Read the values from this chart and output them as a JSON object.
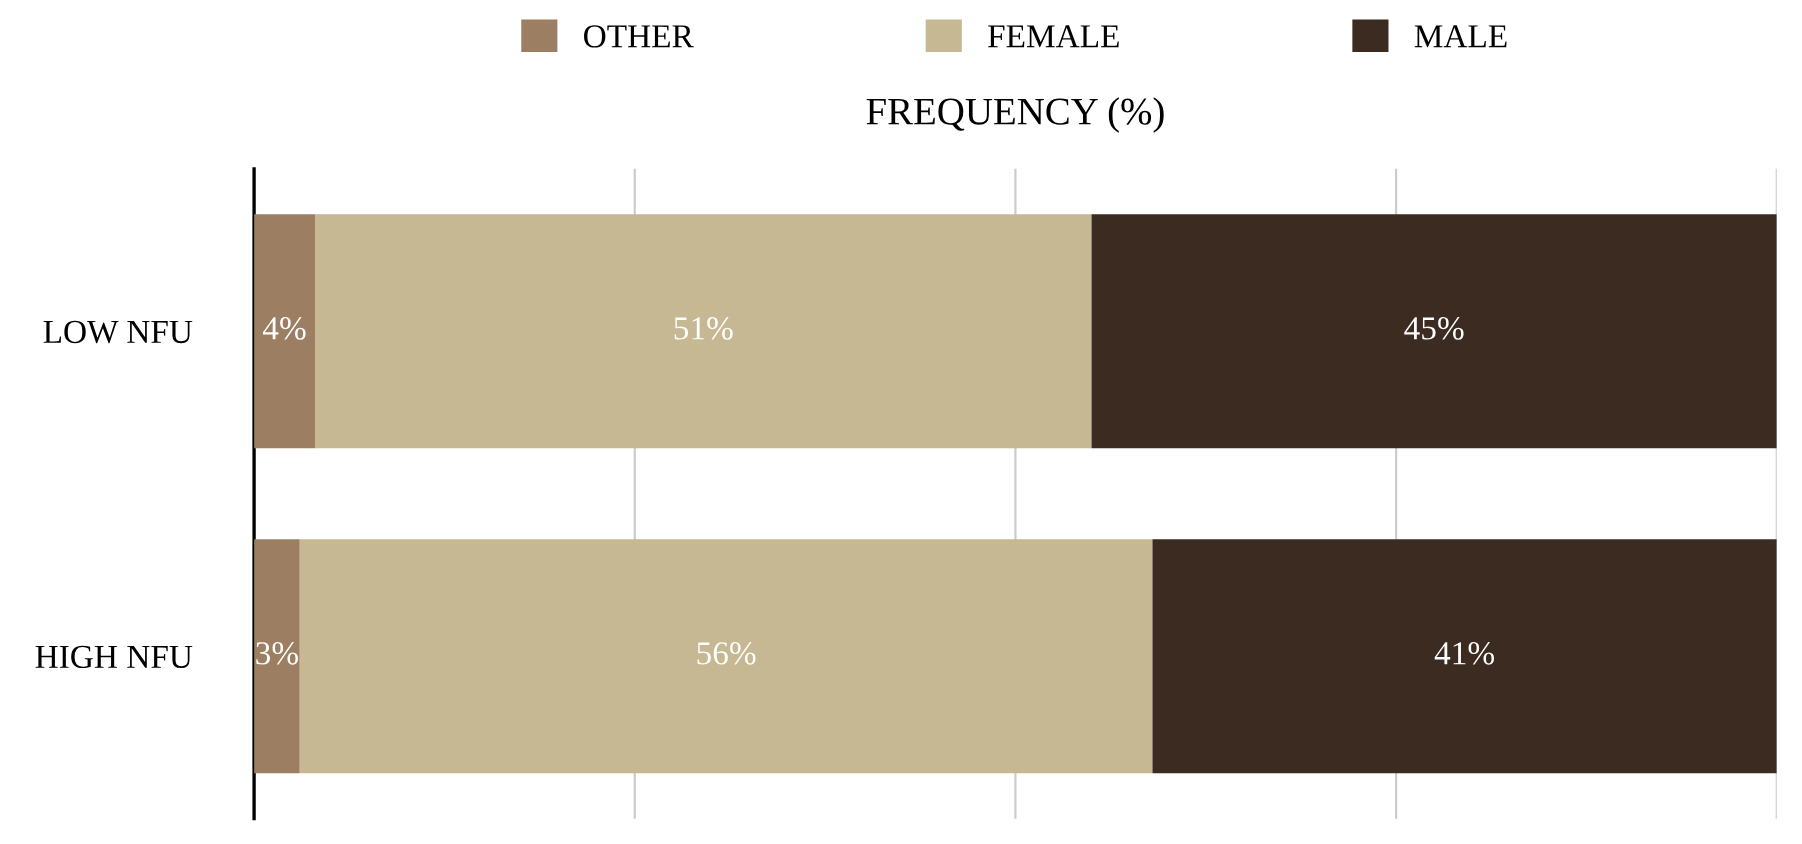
{
  "chart_data": {
    "type": "bar",
    "orientation": "horizontal",
    "stacked": true,
    "xlabel": "FREQUENCY (%)",
    "categories": [
      "LOW NFU",
      "HIGH NFU"
    ],
    "series": [
      {
        "name": "OTHER",
        "color": "#9c7f63",
        "values": [
          4,
          3
        ],
        "value_labels": [
          "4%",
          "3%"
        ]
      },
      {
        "name": "FEMALE",
        "color": "#c5b893",
        "values": [
          51,
          56
        ],
        "value_labels": [
          "51%",
          "56%"
        ]
      },
      {
        "name": "MALE",
        "color": "#3b2b20",
        "values": [
          45,
          41
        ],
        "value_labels": [
          "45%",
          "41%"
        ]
      }
    ],
    "xlim": [
      0,
      100
    ],
    "xticks": [
      {
        "value": 0,
        "label": null
      },
      {
        "value": 25,
        "label": null
      },
      {
        "value": 50,
        "label": null
      },
      {
        "value": 75,
        "label": null
      },
      {
        "value": 100,
        "label": null
      }
    ],
    "grid": "x",
    "legend": "top",
    "tick_labels": "y"
  }
}
